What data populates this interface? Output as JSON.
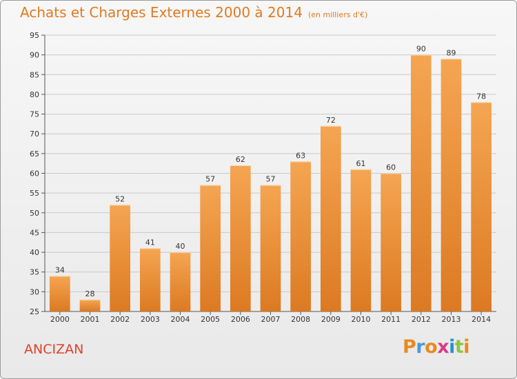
{
  "title": "Achats et Charges Externes 2000 à 2014",
  "subtitle": "(en milliers d'€)",
  "commune": "ANCIZAN",
  "logo": {
    "letters": [
      "P",
      "r",
      "o",
      "x",
      "i",
      "t",
      "i"
    ],
    "colors": [
      "#e98a1f",
      "#4a9ad6",
      "#e98a1f",
      "#d93a86",
      "#2c8fd0",
      "#8cc63f",
      "#e98a1f"
    ]
  },
  "colors": {
    "title": "#e07a1f",
    "commune": "#e0402b",
    "bar_top": "#f5a552",
    "bar_bottom": "#dc7a22"
  },
  "chart_data": {
    "type": "bar",
    "title": "Achats et Charges Externes 2000 à 2014",
    "subtitle": "(en milliers d'€)",
    "categories": [
      "2000",
      "2001",
      "2002",
      "2003",
      "2004",
      "2005",
      "2006",
      "2007",
      "2008",
      "2009",
      "2010",
      "2011",
      "2012",
      "2013",
      "2014"
    ],
    "values": [
      34,
      28,
      52,
      41,
      40,
      57,
      62,
      57,
      63,
      72,
      61,
      60,
      90,
      89,
      78
    ],
    "ylim": [
      25,
      95
    ],
    "yticks": [
      25,
      30,
      35,
      40,
      45,
      50,
      55,
      60,
      65,
      70,
      75,
      80,
      85,
      90,
      95
    ],
    "grid": true,
    "data_labels": true
  }
}
